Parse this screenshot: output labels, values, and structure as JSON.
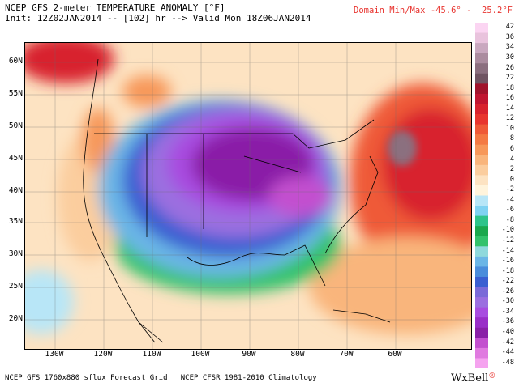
{
  "header": {
    "title": "NCEP GFS 2-meter TEMPERATURE ANOMALY [°F]",
    "init": "Init: 12Z02JAN2014 -- [102] hr --> Valid Mon 18Z06JAN2014",
    "minmax": "Domain Min/Max -45.6° -  25.2°F"
  },
  "axes": {
    "lat_labels": [
      "60N",
      "55N",
      "50N",
      "45N",
      "40N",
      "35N",
      "30N",
      "25N",
      "20N"
    ],
    "lon_labels": [
      "130W",
      "120W",
      "110W",
      "100W",
      "90W",
      "80W",
      "70W",
      "60W"
    ]
  },
  "colorbar": {
    "labels": [
      "42",
      "36",
      "34",
      "30",
      "26",
      "22",
      "18",
      "16",
      "14",
      "12",
      "10",
      "8",
      "6",
      "4",
      "2",
      "0",
      "-2",
      "-4",
      "-6",
      "-8",
      "-10",
      "-12",
      "-14",
      "-16",
      "-18",
      "-22",
      "-26",
      "-30",
      "-34",
      "-36",
      "-40",
      "-42",
      "-44",
      "-48"
    ],
    "colors": [
      "#fbd5f2",
      "#e9c3dd",
      "#c9a8bf",
      "#ab8c9f",
      "#8b6f7f",
      "#6f5462",
      "#a0132b",
      "#c01530",
      "#d8222e",
      "#e8352f",
      "#ef5a38",
      "#f47a44",
      "#f7985a",
      "#f9b57c",
      "#fbcd9e",
      "#fde3c2",
      "#fff4dc",
      "#b8e6f7",
      "#7fd2f2",
      "#2ec48a",
      "#1ba84d",
      "#33c26b",
      "#8fd9dc",
      "#6bb6e6",
      "#4a8ddb",
      "#3a5fd1",
      "#7a6ad8",
      "#9b6fe0",
      "#a84ce0",
      "#9a2ec8",
      "#8a1fa7",
      "#c34fcf",
      "#e07ae0",
      "#f5a3ef"
    ]
  },
  "footer": "NCEP GFS 1760x880 sflux Forecast Grid | NCEP CFSR 1981-2010 Climatology",
  "logo": {
    "text": "WxBell",
    "mark": "®"
  }
}
